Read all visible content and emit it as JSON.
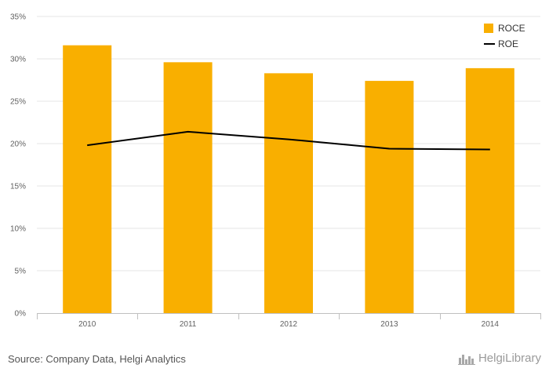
{
  "chart_data": {
    "type": "bar",
    "categories": [
      "2010",
      "2011",
      "2012",
      "2013",
      "2014"
    ],
    "series": [
      {
        "name": "ROCE",
        "type": "bar",
        "color": "#F9AF00",
        "values": [
          31.6,
          29.6,
          28.3,
          27.4,
          28.9
        ]
      },
      {
        "name": "ROE",
        "type": "line",
        "color": "#000000",
        "values": [
          19.8,
          21.4,
          20.5,
          19.4,
          19.3
        ]
      }
    ],
    "y_ticks": [
      "0%",
      "5%",
      "10%",
      "15%",
      "20%",
      "25%",
      "30%",
      "35%"
    ],
    "ylim": [
      0,
      35
    ],
    "grid": true,
    "legend_position": "top-right"
  },
  "footer": {
    "source": "Source: Company Data, Helgi Analytics"
  },
  "brand": {
    "name": "HelgiLibrary",
    "icon": "city-skyline-icon"
  }
}
